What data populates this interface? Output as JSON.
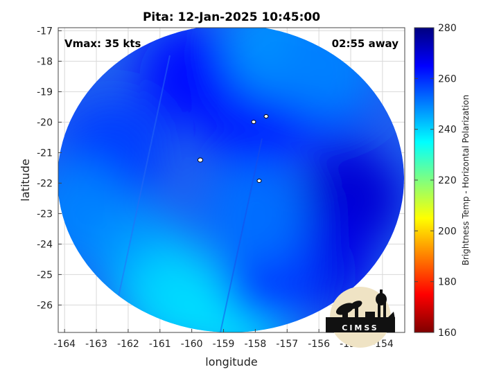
{
  "chart_data": {
    "type": "heatmap",
    "title": "Pita: 12-Jan-2025 10:45:00",
    "xlabel": "longitude",
    "ylabel": "latitude",
    "xlim": [
      -164.2,
      -153.3
    ],
    "ylim": [
      -26.9,
      -16.9
    ],
    "x_ticks": [
      "-164",
      "-163",
      "-162",
      "-161",
      "-160",
      "-159",
      "-158",
      "-157",
      "-156",
      "-155",
      "-154"
    ],
    "y_ticks": [
      "-17",
      "-18",
      "-19",
      "-20",
      "-21",
      "-22",
      "-23",
      "-24",
      "-25",
      "-26"
    ],
    "annotations": {
      "vmax": "Vmax: 35 kts",
      "away": "02:55 away"
    },
    "colorbar": {
      "label": "Brightness Temp - Horizontal Polarization",
      "range": [
        160,
        280
      ],
      "ticks": [
        "280",
        "260",
        "240",
        "220",
        "200",
        "180",
        "160"
      ]
    },
    "field_regions": [
      {
        "lon": -160.0,
        "lat": -18.5,
        "value": 263
      },
      {
        "lon": -158.0,
        "lat": -20.0,
        "value": 262
      },
      {
        "lon": -156.0,
        "lat": -19.0,
        "value": 264
      },
      {
        "lon": -155.0,
        "lat": -22.5,
        "value": 270
      },
      {
        "lon": -156.0,
        "lat": -24.5,
        "value": 268
      },
      {
        "lon": -162.5,
        "lat": -21.0,
        "value": 258
      },
      {
        "lon": -163.5,
        "lat": -23.0,
        "value": 250
      },
      {
        "lon": -161.5,
        "lat": -24.5,
        "value": 247
      },
      {
        "lon": -160.5,
        "lat": -25.8,
        "value": 240
      },
      {
        "lon": -158.5,
        "lat": -26.2,
        "value": 238
      },
      {
        "lon": -157.5,
        "lat": -25.0,
        "value": 258
      },
      {
        "lon": -158.0,
        "lat": -23.0,
        "value": 252
      },
      {
        "lon": -157.3,
        "lat": -17.5,
        "value": 248
      },
      {
        "lon": -155.8,
        "lat": -18.2,
        "value": 250
      }
    ]
  },
  "logo": {
    "text": "CIMSS"
  }
}
